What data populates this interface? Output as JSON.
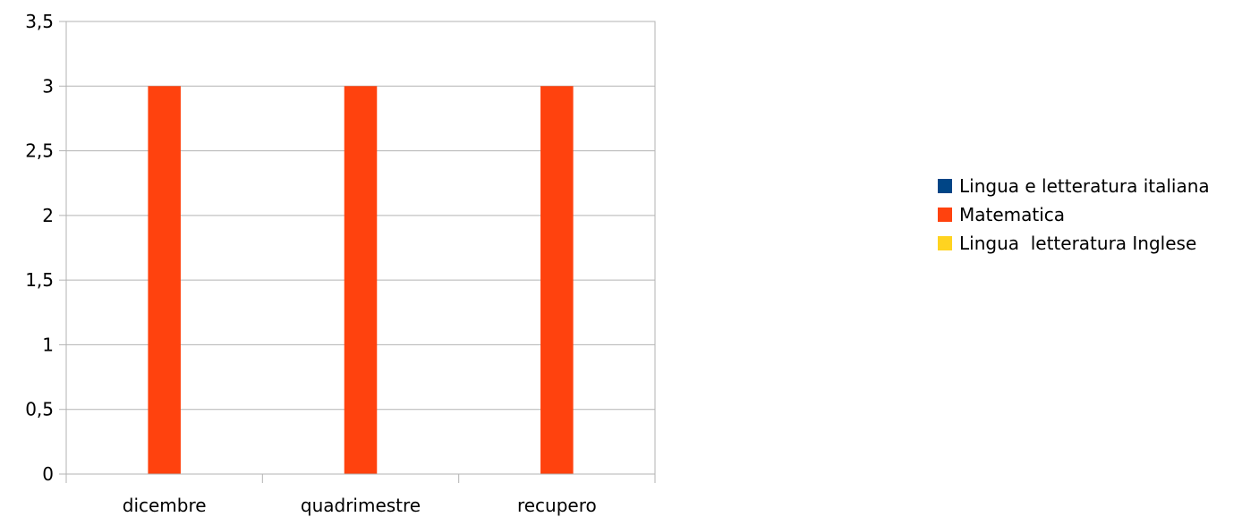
{
  "chart_data": {
    "type": "bar",
    "categories": [
      "dicembre",
      "quadrimestre",
      "recupero"
    ],
    "series": [
      {
        "name": "Lingua e letteratura italiana",
        "color": "#004586",
        "values": [
          0,
          0,
          0
        ]
      },
      {
        "name": "Matematica",
        "color": "#ff420e",
        "values": [
          3,
          3,
          3
        ]
      },
      {
        "name": "Lingua  letteratura Inglese",
        "color": "#ffd320",
        "values": [
          0,
          0,
          0
        ]
      }
    ],
    "y_ticks": [
      "0",
      "0,5",
      "1",
      "1,5",
      "2",
      "2,5",
      "3",
      "3,5"
    ],
    "ylim": [
      0,
      3.5
    ],
    "grid": true,
    "legend_position": "right"
  }
}
